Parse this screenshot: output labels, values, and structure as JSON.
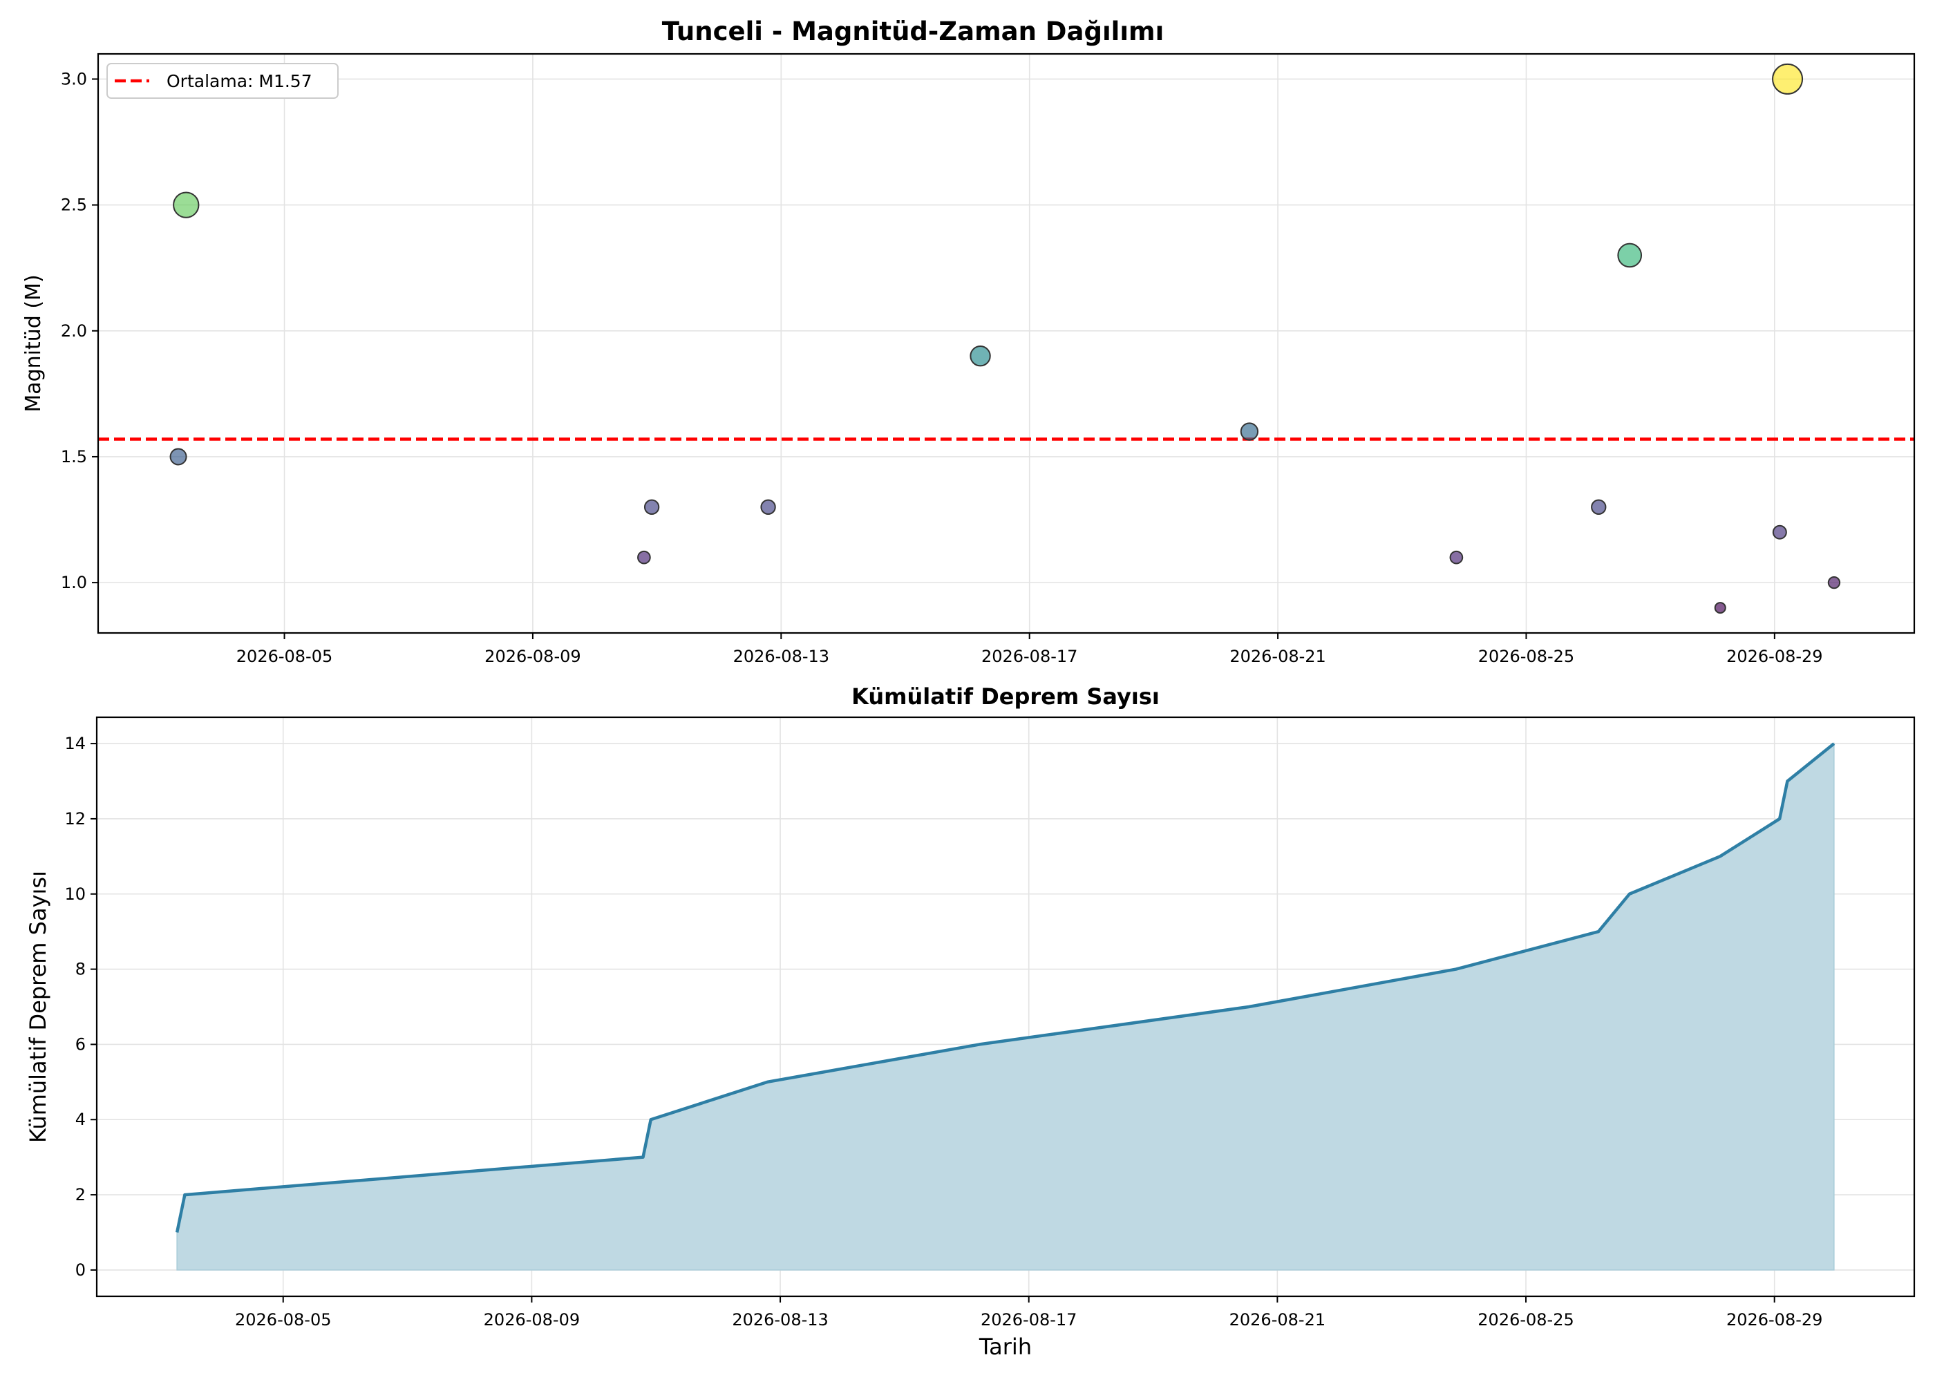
{
  "chart_data": [
    {
      "type": "scatter",
      "title": "Tunceli - Magnitüd-Zaman Dağılımı",
      "xlabel": "",
      "ylabel": "Magnitüd (M)",
      "x_ticks": [
        "2026-08-05",
        "2026-08-09",
        "2026-08-13",
        "2026-08-17",
        "2026-08-21",
        "2026-08-25",
        "2026-08-29"
      ],
      "y_ticks": [
        "1.0",
        "1.5",
        "2.0",
        "2.5",
        "3.0"
      ],
      "xlim": [
        "2026-08-02T00:00",
        "2026-08-31T06:00"
      ],
      "ylim": [
        0.8,
        3.1
      ],
      "grid": true,
      "legend_position": "top-left",
      "legend_label": "Ortalama: M1.57",
      "mean_line": {
        "value": 1.57,
        "color": "#ff0000",
        "style": "dashed"
      },
      "colormap": "viridis",
      "points": [
        {
          "x": "2026-08-03T07:00",
          "y": 1.5
        },
        {
          "x": "2026-08-03T10:00",
          "y": 2.5
        },
        {
          "x": "2026-08-10T19:00",
          "y": 1.1
        },
        {
          "x": "2026-08-10T22:00",
          "y": 1.3
        },
        {
          "x": "2026-08-12T19:00",
          "y": 1.3
        },
        {
          "x": "2026-08-16T05:00",
          "y": 1.9
        },
        {
          "x": "2026-08-20T13:00",
          "y": 1.6
        },
        {
          "x": "2026-08-23T21:00",
          "y": 1.1
        },
        {
          "x": "2026-08-26T04:00",
          "y": 1.3
        },
        {
          "x": "2026-08-26T16:00",
          "y": 2.3
        },
        {
          "x": "2026-08-28T03:00",
          "y": 0.9
        },
        {
          "x": "2026-08-29T02:00",
          "y": 1.2
        },
        {
          "x": "2026-08-29T05:00",
          "y": 3.0
        },
        {
          "x": "2026-08-29T23:00",
          "y": 1.0
        }
      ]
    },
    {
      "type": "area",
      "title": "Kümülatif Deprem Sayısı",
      "xlabel": "Tarih",
      "ylabel": "Kümülatif Deprem Sayısı",
      "x_ticks": [
        "2026-08-05",
        "2026-08-09",
        "2026-08-13",
        "2026-08-17",
        "2026-08-21",
        "2026-08-25",
        "2026-08-29"
      ],
      "y_ticks": [
        "0",
        "2",
        "4",
        "6",
        "8",
        "10",
        "12",
        "14"
      ],
      "xlim": [
        "2026-08-02T00:00",
        "2026-08-31T06:00"
      ],
      "ylim": [
        -0.7,
        14.7
      ],
      "grid": true,
      "line_color": "#2e7fa5",
      "fill_color": "#bfd9e3",
      "points": [
        {
          "x": "2026-08-03T07:00",
          "y": 1
        },
        {
          "x": "2026-08-03T10:00",
          "y": 2
        },
        {
          "x": "2026-08-10T19:00",
          "y": 3
        },
        {
          "x": "2026-08-10T22:00",
          "y": 4
        },
        {
          "x": "2026-08-12T19:00",
          "y": 5
        },
        {
          "x": "2026-08-16T05:00",
          "y": 6
        },
        {
          "x": "2026-08-20T13:00",
          "y": 7
        },
        {
          "x": "2026-08-23T21:00",
          "y": 8
        },
        {
          "x": "2026-08-26T04:00",
          "y": 9
        },
        {
          "x": "2026-08-26T16:00",
          "y": 10
        },
        {
          "x": "2026-08-28T03:00",
          "y": 11
        },
        {
          "x": "2026-08-29T02:00",
          "y": 12
        },
        {
          "x": "2026-08-29T05:00",
          "y": 13
        },
        {
          "x": "2026-08-29T23:00",
          "y": 14
        }
      ]
    }
  ]
}
